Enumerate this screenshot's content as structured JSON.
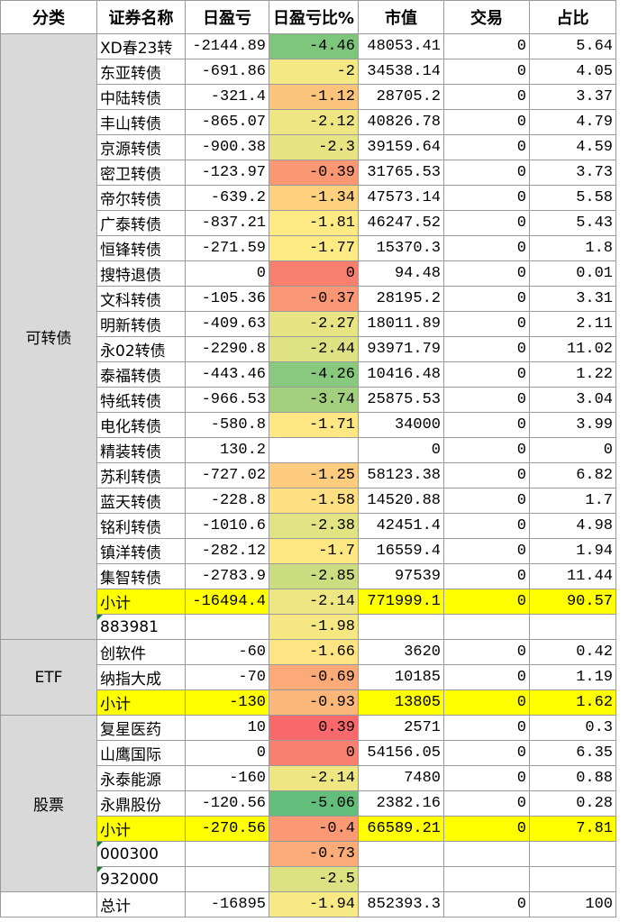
{
  "header": [
    "分类",
    "证券名称",
    "日盈亏",
    "日盈亏比%",
    "市值",
    "交易",
    "占比"
  ],
  "groups": [
    {
      "category": "可转债",
      "rows": [
        {
          "name": "XD春23转",
          "pnl": "-2144.89",
          "ratio": "-4.46",
          "value": "48053.41",
          "trade": "0",
          "share": "5.64"
        },
        {
          "name": "东亚转债",
          "pnl": "-691.86",
          "ratio": "-2",
          "value": "34538.14",
          "trade": "0",
          "share": "4.05"
        },
        {
          "name": "中陆转债",
          "pnl": "-321.4",
          "ratio": "-1.12",
          "value": "28705.2",
          "trade": "0",
          "share": "3.37"
        },
        {
          "name": "丰山转债",
          "pnl": "-865.07",
          "ratio": "-2.12",
          "value": "40826.78",
          "trade": "0",
          "share": "4.79"
        },
        {
          "name": "京源转债",
          "pnl": "-900.38",
          "ratio": "-2.3",
          "value": "39159.64",
          "trade": "0",
          "share": "4.59"
        },
        {
          "name": "密卫转债",
          "pnl": "-123.97",
          "ratio": "-0.39",
          "value": "31765.53",
          "trade": "0",
          "share": "3.73"
        },
        {
          "name": "帝尔转债",
          "pnl": "-639.2",
          "ratio": "-1.34",
          "value": "47573.14",
          "trade": "0",
          "share": "5.58"
        },
        {
          "name": "广泰转债",
          "pnl": "-837.21",
          "ratio": "-1.81",
          "value": "46247.52",
          "trade": "0",
          "share": "5.43"
        },
        {
          "name": "恒锋转债",
          "pnl": "-271.59",
          "ratio": "-1.77",
          "value": "15370.3",
          "trade": "0",
          "share": "1.8"
        },
        {
          "name": "搜特退债",
          "pnl": "0",
          "ratio": "0",
          "value": "94.48",
          "trade": "0",
          "share": "0.01"
        },
        {
          "name": "文科转债",
          "pnl": "-105.36",
          "ratio": "-0.37",
          "value": "28195.2",
          "trade": "0",
          "share": "3.31"
        },
        {
          "name": "明新转债",
          "pnl": "-409.63",
          "ratio": "-2.27",
          "value": "18011.89",
          "trade": "0",
          "share": "2.11"
        },
        {
          "name": "永02转债",
          "pnl": "-2290.8",
          "ratio": "-2.44",
          "value": "93971.79",
          "trade": "0",
          "share": "11.02"
        },
        {
          "name": "泰福转债",
          "pnl": "-443.46",
          "ratio": "-4.26",
          "value": "10416.48",
          "trade": "0",
          "share": "1.22"
        },
        {
          "name": "特纸转债",
          "pnl": "-966.53",
          "ratio": "-3.74",
          "value": "25875.53",
          "trade": "0",
          "share": "3.04"
        },
        {
          "name": "电化转债",
          "pnl": "-580.8",
          "ratio": "-1.71",
          "value": "34000",
          "trade": "0",
          "share": "3.99"
        },
        {
          "name": "精装转债",
          "pnl": "130.2",
          "value": "0",
          "trade": "0",
          "share": "0"
        },
        {
          "name": "苏利转债",
          "pnl": "-727.02",
          "ratio": "-1.25",
          "value": "58123.38",
          "trade": "0",
          "share": "6.82"
        },
        {
          "name": "蓝天转债",
          "pnl": "-228.8",
          "ratio": "-1.58",
          "value": "14520.88",
          "trade": "0",
          "share": "1.7"
        },
        {
          "name": "铭利转债",
          "pnl": "-1010.6",
          "ratio": "-2.38",
          "value": "42451.4",
          "trade": "0",
          "share": "4.98"
        },
        {
          "name": "镇洋转债",
          "pnl": "-282.12",
          "ratio": "-1.7",
          "value": "16559.4",
          "trade": "0",
          "share": "1.94"
        },
        {
          "name": "集智转债",
          "pnl": "-2783.9",
          "ratio": "-2.85",
          "value": "97539",
          "trade": "0",
          "share": "11.44"
        },
        {
          "name": "小计",
          "pnl": "-16494.4",
          "ratio": "-2.14",
          "value": "771999.1",
          "trade": "0",
          "share": "90.57",
          "subtotal": true
        },
        {
          "name": "883981",
          "ratio": "-1.98"
        }
      ]
    },
    {
      "category": "ETF",
      "rows": [
        {
          "name": "创软件",
          "pnl": "-60",
          "ratio": "-1.66",
          "value": "3620",
          "trade": "0",
          "share": "0.42"
        },
        {
          "name": "纳指大成",
          "pnl": "-70",
          "ratio": "-0.69",
          "value": "10185",
          "trade": "0",
          "share": "1.19"
        },
        {
          "name": "小计",
          "pnl": "-130",
          "ratio": "-0.93",
          "value": "13805",
          "trade": "0",
          "share": "1.62",
          "subtotal": true
        }
      ]
    },
    {
      "category": "股票",
      "rows": [
        {
          "name": "复星医药",
          "pnl": "10",
          "ratio": "0.39",
          "value": "2571",
          "trade": "0",
          "share": "0.3"
        },
        {
          "name": "山鹰国际",
          "pnl": "0",
          "ratio": "0",
          "value": "54156.05",
          "trade": "0",
          "share": "6.35"
        },
        {
          "name": "永泰能源",
          "pnl": "-160",
          "ratio": "-2.14",
          "value": "7480",
          "trade": "0",
          "share": "0.88"
        },
        {
          "name": "永鼎股份",
          "pnl": "-120.56",
          "ratio": "-5.06",
          "value": "2382.16",
          "trade": "0",
          "share": "0.28"
        },
        {
          "name": "小计",
          "pnl": "-270.56",
          "ratio": "-0.4",
          "value": "66589.21",
          "trade": "0",
          "share": "7.81",
          "subtotal": true
        },
        {
          "name": "000300",
          "ratio": "-0.73"
        },
        {
          "name": "932000",
          "ratio": "-2.5"
        }
      ]
    }
  ],
  "total": {
    "name": "总计",
    "pnl": "-16895",
    "ratio": "-1.94",
    "value": "852393.3",
    "trade": "0",
    "share": "100"
  }
}
